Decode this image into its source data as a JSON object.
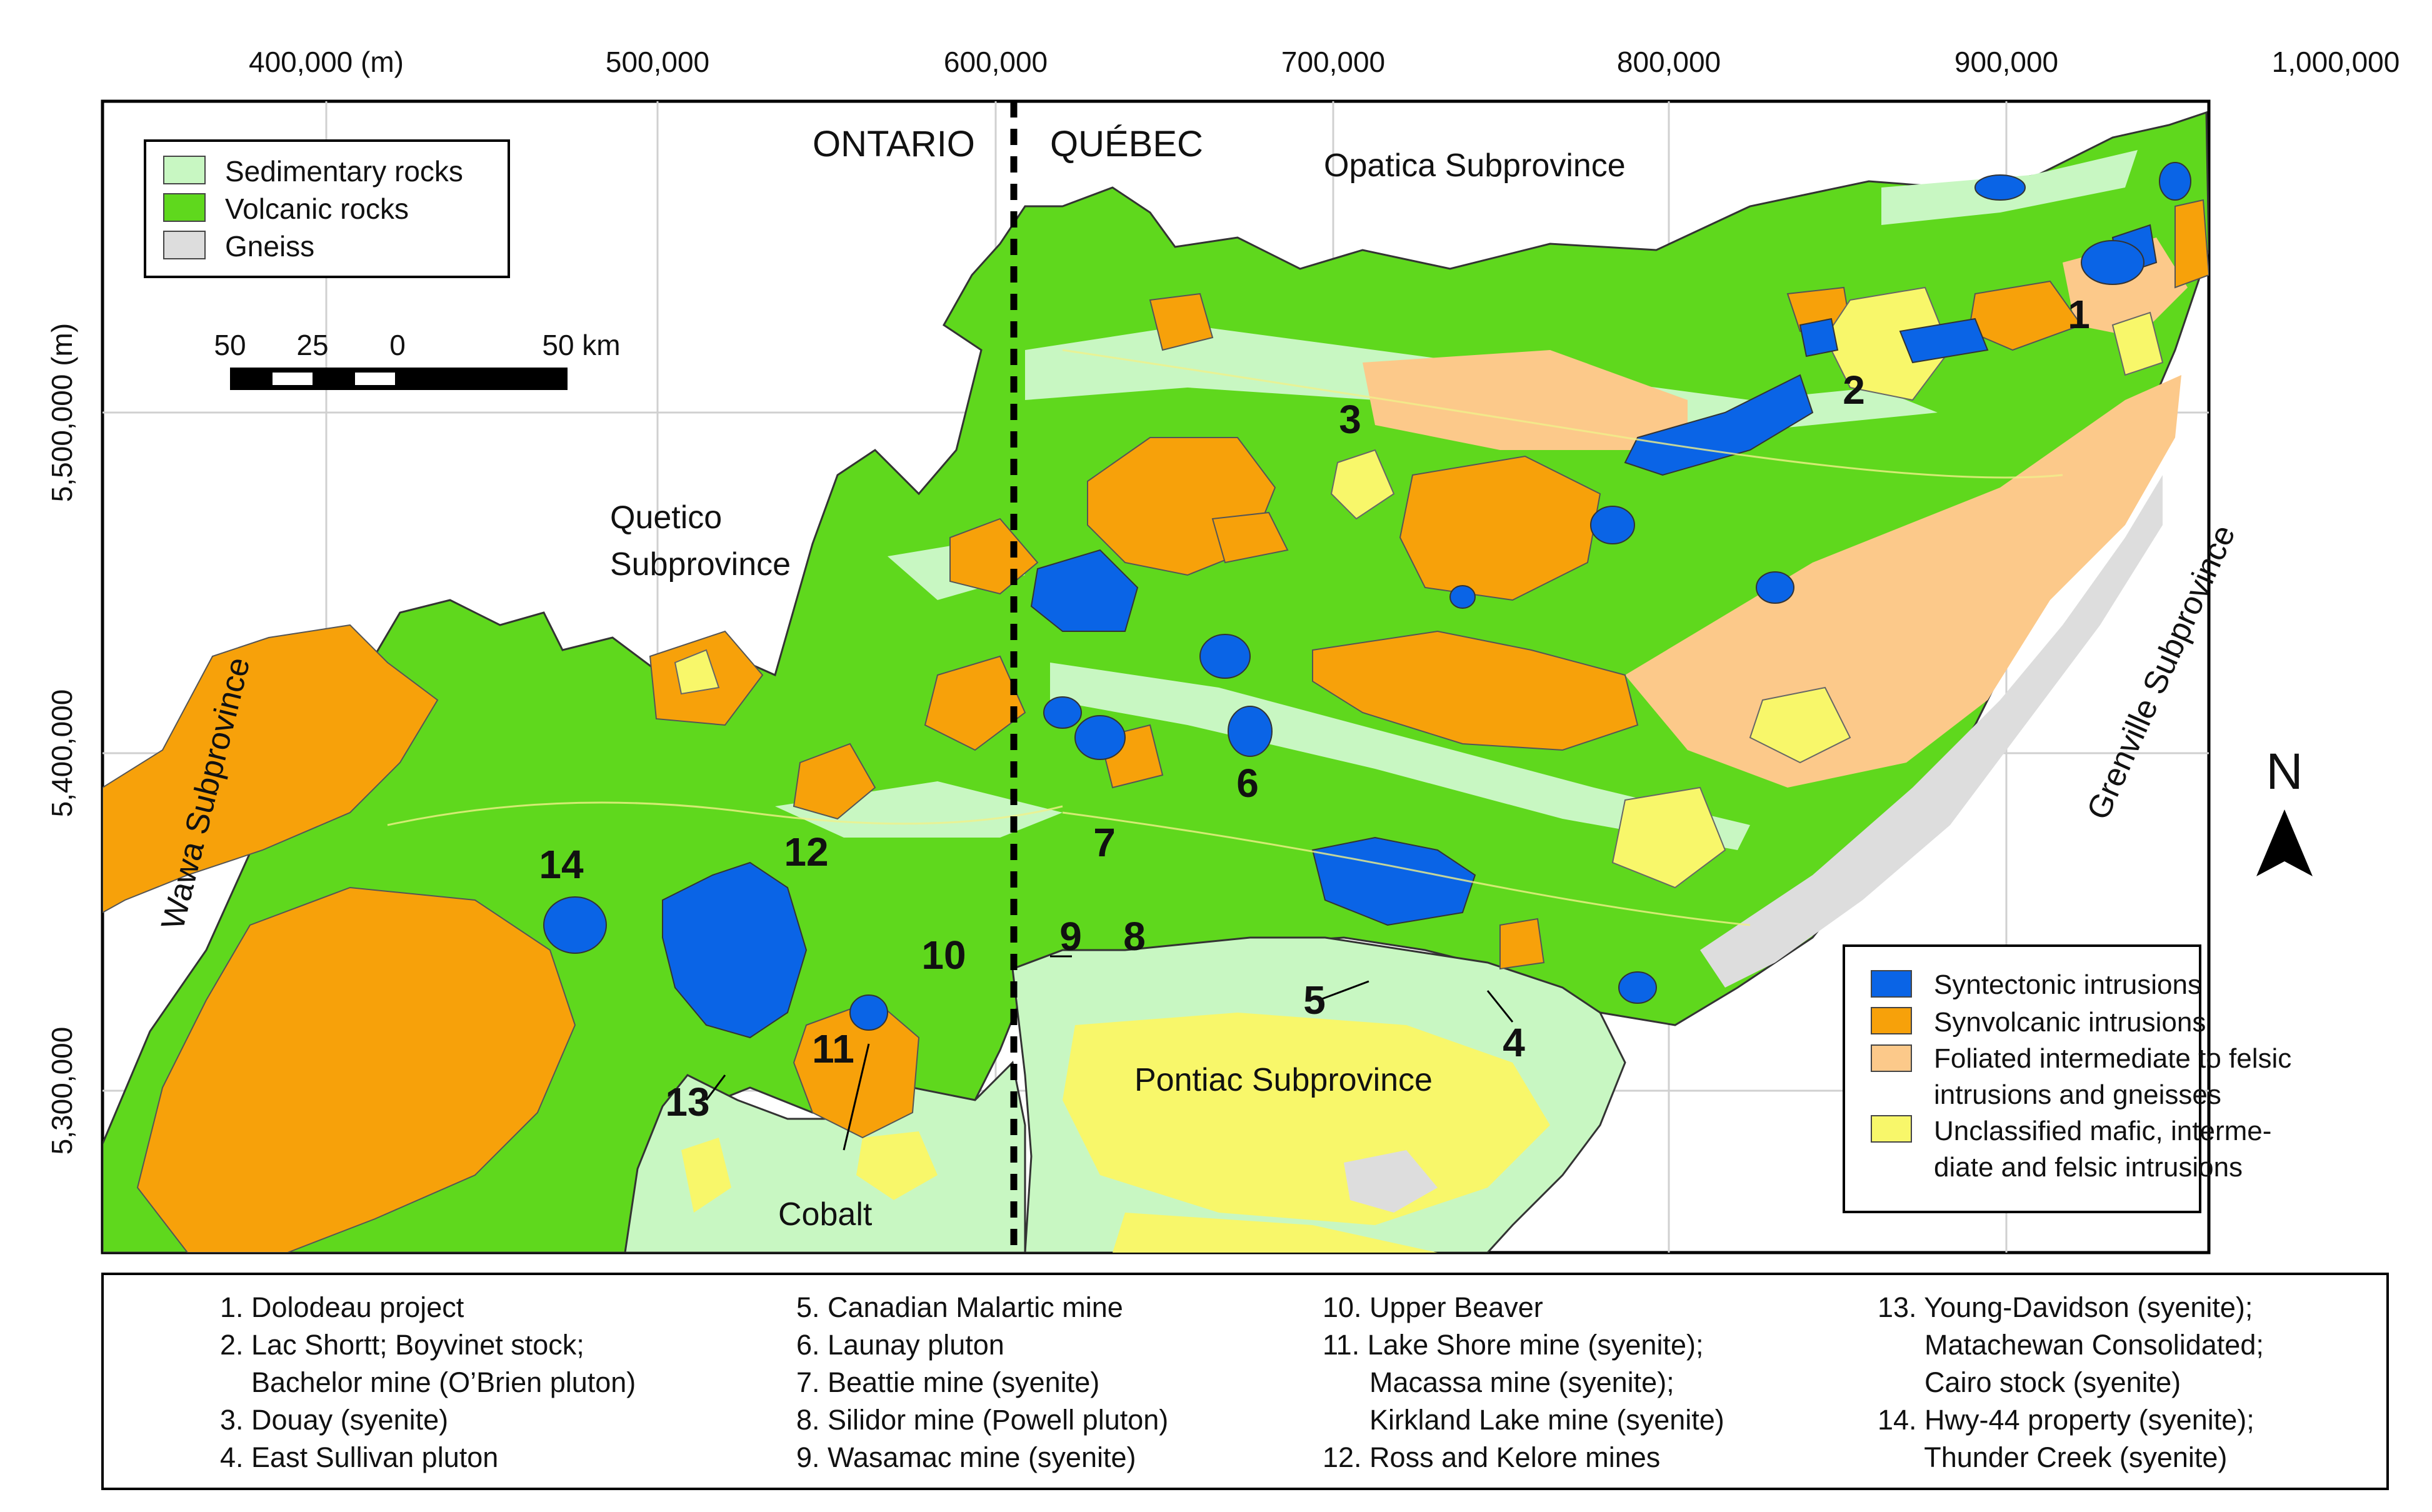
{
  "top_ticks": [
    "400,000 (m)",
    "500,000",
    "600,000",
    "700,000",
    "800,000",
    "900,000",
    "1,000,000"
  ],
  "left_ticks": [
    "5,500,000 (m)",
    "5,400,000",
    "5,300,000"
  ],
  "provinces": {
    "west": "ONTARIO",
    "east": "QUÉBEC"
  },
  "subprovinces": {
    "opatica": "Opatica Subprovince",
    "quetico_1": "Quetico",
    "quetico_2": "Subprovince",
    "wawa": "Wawa Subprovince",
    "grenville": "Grenville Subprovince",
    "pontiac": "Pontiac Subprovince",
    "cobalt": "Cobalt"
  },
  "rock_legend": [
    {
      "label": "Sedimentary rocks",
      "color": "#c8f7c2"
    },
    {
      "label": "Volcanic rocks",
      "color": "#5fd81d"
    },
    {
      "label": "Gneiss",
      "color": "#dddddd"
    }
  ],
  "scale_bar": {
    "labels": [
      "50",
      "25",
      "0",
      "50 km"
    ]
  },
  "north_label": "N",
  "intrusion_legend": [
    {
      "label": "Syntectonic intrusions",
      "color": "#0a64e6"
    },
    {
      "label": "Synvolcanic intrusions",
      "color": "#f7a10a"
    },
    {
      "label": "Foliated intermediate to felsic",
      "label2": "intrusions and gneisses",
      "color": "#fcc98a"
    },
    {
      "label": "Unclassified mafic, interme-",
      "label2": "diate and felsic intrusions",
      "color": "#f8f76a"
    }
  ],
  "site_markers": [
    "1",
    "2",
    "3",
    "4",
    "5",
    "6",
    "7",
    "8",
    "9",
    "10",
    "11",
    "12",
    "13",
    "14"
  ],
  "caption": {
    "col1": [
      "1. Dolodeau project",
      "2. Lac Shortt; Boyvinet stock;",
      "    Bachelor mine (O’Brien pluton)",
      "3. Douay (syenite)",
      "4. East Sullivan pluton"
    ],
    "col2": [
      "5. Canadian Malartic mine",
      "6. Launay pluton",
      "7. Beattie mine (syenite)",
      "8. Silidor mine (Powell pluton)",
      "9. Wasamac mine (syenite)"
    ],
    "col3": [
      "10. Upper Beaver",
      "11. Lake Shore mine (syenite);",
      "      Macassa mine (syenite);",
      "      Kirkland Lake mine (syenite)",
      "12. Ross and Kelore mines"
    ],
    "col4": [
      "13. Young-Davidson (syenite);",
      "      Matachewan Consolidated;",
      "      Cairo stock (syenite)",
      "14. Hwy-44 property (syenite);",
      "      Thunder Creek (syenite)"
    ]
  }
}
